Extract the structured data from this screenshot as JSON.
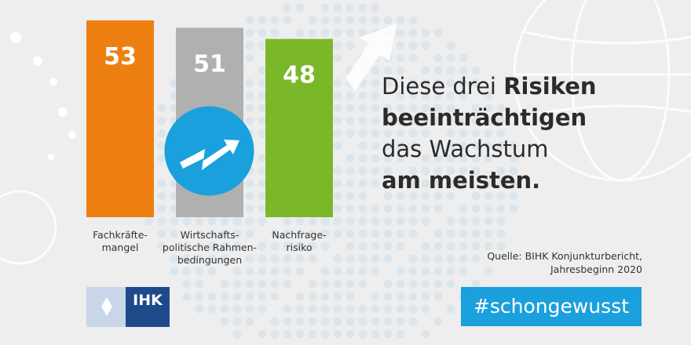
{
  "chart_data": {
    "type": "bar",
    "categories": [
      "Fachkräfte-\nmangel",
      "Wirtschafts-\npolitische Rahmen-\nbedingungen",
      "Nachfrage-\nrisiko"
    ],
    "values": [
      53,
      51,
      48
    ],
    "value_labels": [
      "53",
      "51",
      "48"
    ],
    "bar_colors": [
      "#ee8012",
      "#b0b0b0",
      "#7ab82a"
    ],
    "title": "",
    "xlabel": "",
    "ylabel": "",
    "ylim": [
      0,
      53
    ],
    "grid": false,
    "legend": "none"
  },
  "headline": {
    "part1": "Diese drei ",
    "part2": "Risiken",
    "part3": "beeinträchtigen",
    "part4": "das Wachstum",
    "part5": "am meisten."
  },
  "source": "Quelle: BIHK Konjunkturbericht,\nJahresbeginn 2020",
  "hashtag": "#schongewusst",
  "logo": {
    "text": "IHK",
    "icon": "ihk-diamond-icon"
  },
  "badge": {
    "icon": "trend-arrow-icon",
    "color": "#1aa0dc"
  },
  "colors": {
    "background": "#eeeeee",
    "accent_blue": "#1aa0dc",
    "logo_dark_blue": "#1e4a8c",
    "logo_light_blue": "#c9d6ea"
  }
}
